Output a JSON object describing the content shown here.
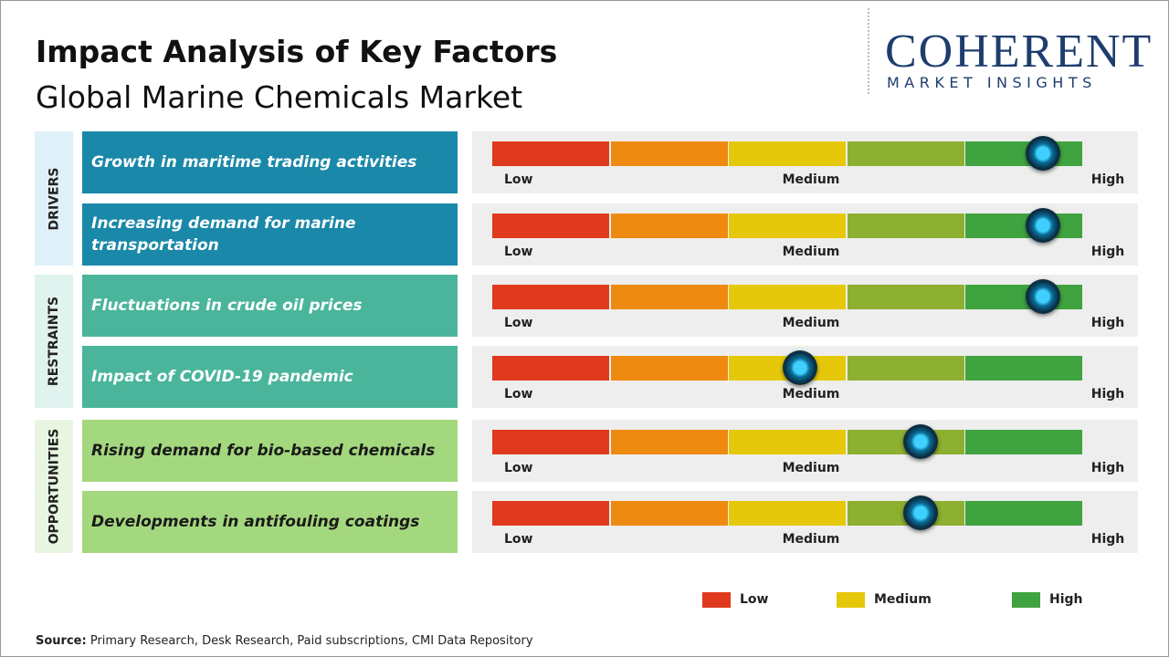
{
  "header": {
    "title": "Impact Analysis of Key Factors",
    "subtitle": "Global Marine Chemicals Market"
  },
  "logo": {
    "name": "COHERENT",
    "tagline": "MARKET INSIGHTS"
  },
  "scale": {
    "labels": [
      "Low",
      "Medium",
      "High"
    ],
    "xlim": [
      0,
      5
    ],
    "colors": [
      "#e03a1e",
      "#ef8a10",
      "#e6c80a",
      "#8db030",
      "#3fa33f"
    ]
  },
  "groups": [
    {
      "name": "DRIVERS",
      "color": "#1a88a8",
      "side_color": "#dff0f8",
      "text_color": "#ffffff",
      "factors": [
        {
          "label": "Growth in maritime trading activities",
          "impact": 4.65
        },
        {
          "label": "Increasing demand for marine transportation",
          "impact": 4.65
        }
      ]
    },
    {
      "name": "RESTRAINTS",
      "color": "#4ab59a",
      "side_color": "#e0f3ee",
      "text_color": "#ffffff",
      "factors": [
        {
          "label": "Fluctuations in crude oil prices",
          "impact": 4.65
        },
        {
          "label": "Impact of COVID-19 pandemic",
          "impact": 2.6
        }
      ]
    },
    {
      "name": "OPPORTUNITIES",
      "color": "#a4d87e",
      "side_color": "#e8f5e0",
      "text_color": "#1a1a1a",
      "factors": [
        {
          "label": "Rising demand for bio-based chemicals",
          "impact": 3.62
        },
        {
          "label": "Developments in antifouling coatings",
          "impact": 3.62
        }
      ]
    }
  ],
  "legend": [
    {
      "label": "Low",
      "color": "#e03a1e"
    },
    {
      "label": "Medium",
      "color": "#e6c80a"
    },
    {
      "label": "High",
      "color": "#3fa33f"
    }
  ],
  "source": {
    "label": "Source:",
    "text": "Primary Research, Desk Research, Paid subscriptions, CMI Data Repository"
  }
}
